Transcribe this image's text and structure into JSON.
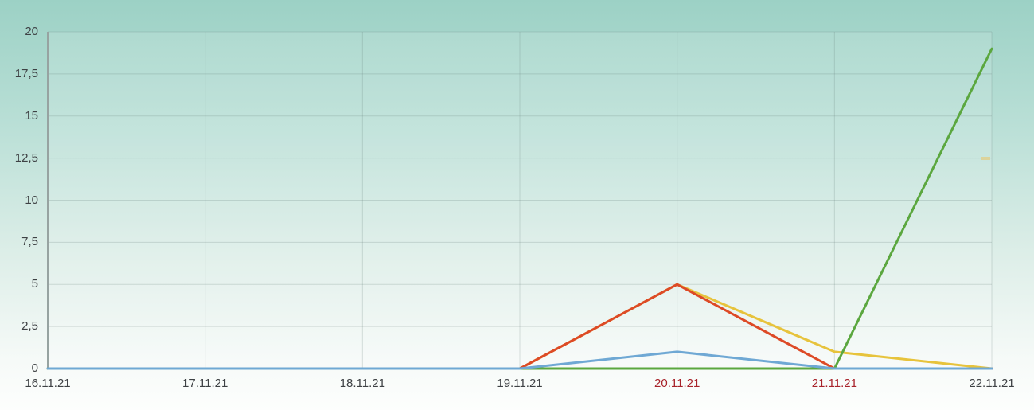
{
  "chart_data": {
    "type": "line",
    "title": "",
    "xlabel": "",
    "ylabel": "",
    "categories": [
      "16.11.21",
      "17.11.21",
      "18.11.21",
      "19.11.21",
      "20.11.21",
      "21.11.21",
      "22.11.21"
    ],
    "x_weekend_flags": [
      false,
      false,
      false,
      false,
      true,
      true,
      false
    ],
    "y_tick_labels": [
      "0",
      "2,5",
      "5",
      "7,5",
      "10",
      "12,5",
      "15",
      "17,5",
      "20"
    ],
    "y_tick_values": [
      0,
      2.5,
      5,
      7.5,
      10,
      12.5,
      15,
      17.5,
      20
    ],
    "ylim": [
      0,
      20
    ],
    "grid": true,
    "legend_position": "none",
    "series": [
      {
        "name": "yellow-series",
        "color": "#e7c33c",
        "values": [
          0,
          0,
          0,
          0,
          5,
          1,
          0
        ]
      },
      {
        "name": "red-series",
        "color": "#dd4a26",
        "values": [
          0,
          0,
          0,
          0,
          5,
          0,
          0
        ]
      },
      {
        "name": "green-series",
        "color": "#5ba73f",
        "values": [
          0,
          0,
          0,
          0,
          0,
          0,
          19
        ]
      },
      {
        "name": "blue-series",
        "color": "#6fa8d4",
        "values": [
          0,
          0,
          0,
          0,
          1,
          0,
          0
        ]
      }
    ]
  },
  "colors": {
    "axis_label": "#3e4144",
    "weekend_label": "#a8232b",
    "axis_line": "#97a3a1",
    "gridline": "rgba(95,120,114,0.22)",
    "plot_overlay": "rgba(255,255,255,0.13)",
    "stray_mark": "#dcd39b",
    "background_top": "#9cd1c5",
    "background_bottom": "#fdfefd"
  },
  "stray_mark": {
    "description": "small pale-yellow dash artifact near 12,5 gridline at right edge"
  }
}
